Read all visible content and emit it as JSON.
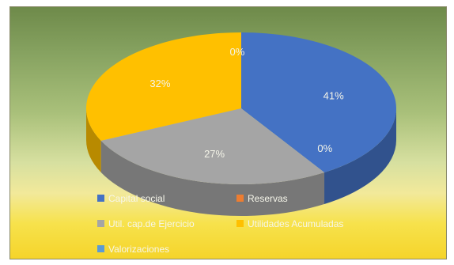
{
  "chart_data": {
    "type": "pie",
    "style": "3d",
    "title": "",
    "labels": [
      "Capital social",
      "Reservas",
      "Util. cap.de Ejercicio",
      "Utilidades Acumuladas",
      "Valorizaciones"
    ],
    "values": [
      41,
      0,
      27,
      32,
      0
    ],
    "value_labels": [
      "41%",
      "0%",
      "27%",
      "32%",
      "0%"
    ],
    "colors": [
      "#4472c4",
      "#ed7d31",
      "#a5a5a5",
      "#ffc000",
      "#5b9bd5"
    ],
    "legend_position": "bottom"
  }
}
